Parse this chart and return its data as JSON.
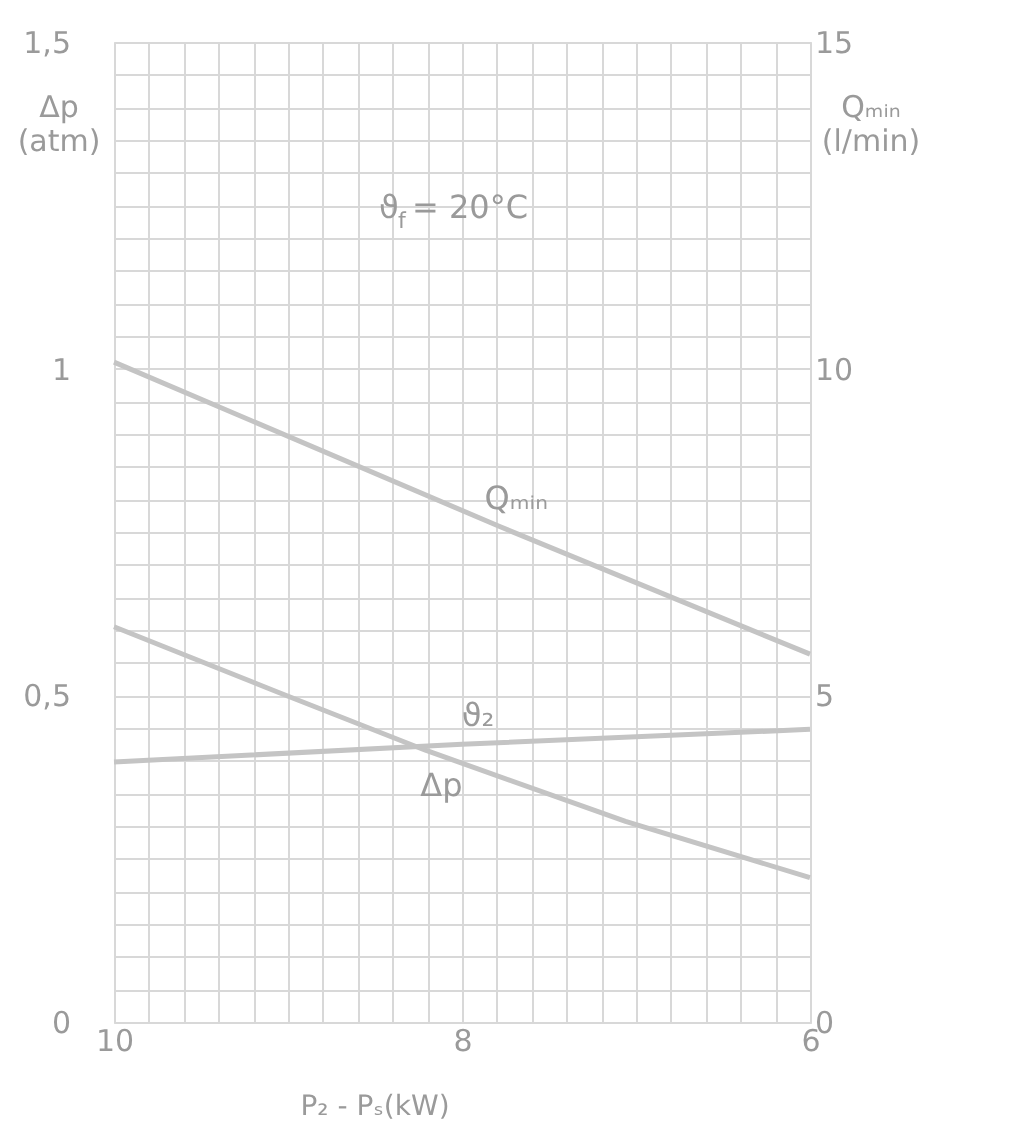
{
  "chart_data": {
    "type": "line",
    "xlabel": "P₂ - Pₛ(kW)",
    "ylabel": "Δp (atm)",
    "y2label": "Qₘᵢₙ (l/min)",
    "annotations": [
      "ϑ$_{f}$ = 20°C"
    ],
    "xlim": [
      10,
      6
    ],
    "xticks": [
      10,
      {
        "value": 9.8,
        "label": null
      },
      {
        "value": 9.6,
        "label": null
      },
      {
        "value": 9.4,
        "label": null
      },
      {
        "value": 9.2,
        "label": null
      },
      {
        "value": 9,
        "label": null
      },
      {
        "value": 8.8,
        "label": null
      },
      {
        "value": 8.6,
        "label": null
      },
      {
        "value": 8.4,
        "label": null
      },
      {
        "value": 8.2,
        "label": null
      },
      8,
      {
        "value": 7.8,
        "label": null
      },
      {
        "value": 7.6,
        "label": null
      },
      {
        "value": 7.4,
        "label": null
      },
      {
        "value": 7.2,
        "label": null
      },
      {
        "value": 7,
        "label": null
      },
      {
        "value": 6.8,
        "label": null
      },
      {
        "value": 6.6,
        "label": null
      },
      {
        "value": 6.4,
        "label": null
      },
      {
        "value": 6.2,
        "label": null
      },
      6
    ],
    "ylim": [
      0,
      1.5
    ],
    "yticks": [
      0,
      {
        "value": 0.05,
        "label": null
      },
      {
        "value": 0.1,
        "label": null
      },
      {
        "value": 0.15,
        "label": null
      },
      {
        "value": 0.2,
        "label": null
      },
      {
        "value": 0.25,
        "label": null
      },
      {
        "value": 0.3,
        "label": null
      },
      {
        "value": 0.35,
        "label": null
      },
      {
        "value": 0.4,
        "label": null
      },
      {
        "value": 0.45,
        "label": null
      },
      {
        "value": 0.5,
        "label": "0,5"
      },
      {
        "value": 0.55,
        "label": null
      },
      {
        "value": 0.6,
        "label": null
      },
      {
        "value": 0.65,
        "label": null
      },
      {
        "value": 0.7,
        "label": null
      },
      {
        "value": 0.75,
        "label": null
      },
      {
        "value": 0.8,
        "label": null
      },
      {
        "value": 0.85,
        "label": null
      },
      {
        "value": 0.9,
        "label": null
      },
      {
        "value": 0.95,
        "label": null
      },
      1,
      {
        "value": 1.05,
        "label": null
      },
      {
        "value": 1.1,
        "label": null
      },
      {
        "value": 1.15,
        "label": null
      },
      {
        "value": 1.2,
        "label": null
      },
      {
        "value": 1.25,
        "label": null
      },
      {
        "value": 1.3,
        "label": null
      },
      {
        "value": 1.35,
        "label": null
      },
      {
        "value": 1.4,
        "label": null
      },
      {
        "value": 1.45,
        "label": null
      },
      {
        "value": 1.5,
        "label": "1,5"
      }
    ],
    "y2lim": [
      0,
      15
    ],
    "y2ticks": [
      0,
      5,
      10,
      15
    ],
    "grid": true,
    "marker": "none",
    "line_style": "solid",
    "series": [
      {
        "name": "Qₘᵢₙ",
        "color": "#c4c4c4",
        "axis": "y2",
        "x": [
          10,
          7.78,
          6
        ],
        "values": [
          10.1,
          7.58,
          5.63
        ]
      },
      {
        "name": "ϑ₂",
        "color": "#c4c4c4",
        "axis": "y2",
        "x": [
          10,
          8,
          6
        ],
        "values": [
          3.98,
          4.25,
          4.48
        ]
      },
      {
        "name": "Δp",
        "color": "#c4c4c4",
        "axis": "y",
        "x": [
          10,
          9.05,
          8.21,
          7.06,
          6
        ],
        "values": [
          0.605,
          0.504,
          0.416,
          0.307,
          0.221
        ]
      }
    ]
  }
}
